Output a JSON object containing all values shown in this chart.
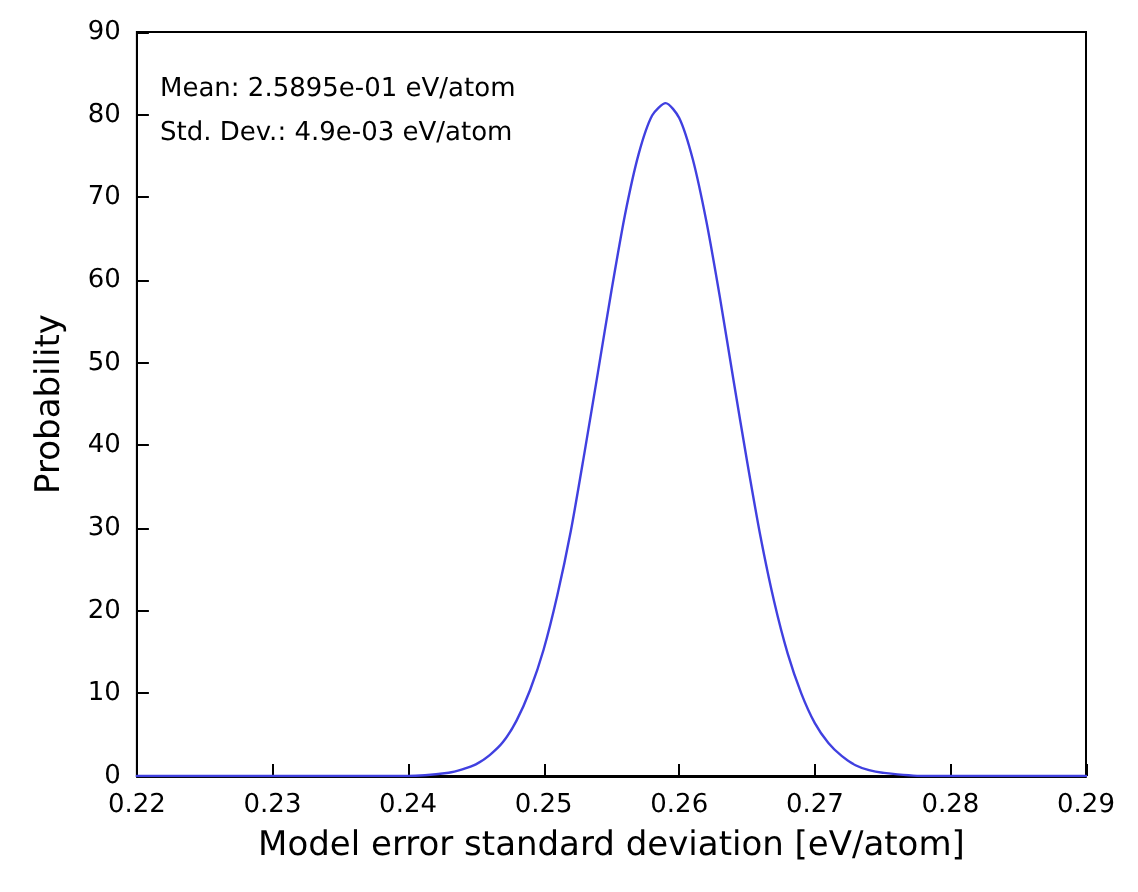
{
  "chart_data": {
    "type": "line",
    "xlabel": "Model error standard deviation [eV/atom]",
    "ylabel": "Probability",
    "annotations": [
      "Mean: 2.5895e-01 eV/atom",
      "Std. Dev.: 4.9e-03 eV/atom"
    ],
    "series": [
      {
        "color": "#4040e0",
        "x": [
          0.22,
          0.23,
          0.24,
          0.243,
          0.244,
          0.245,
          0.246,
          0.247,
          0.248,
          0.249,
          0.25,
          0.251,
          0.252,
          0.253,
          0.254,
          0.255,
          0.256,
          0.257,
          0.258,
          0.259,
          0.26,
          0.261,
          0.262,
          0.263,
          0.264,
          0.265,
          0.266,
          0.267,
          0.268,
          0.269,
          0.27,
          0.271,
          0.272,
          0.273,
          0.274,
          0.275,
          0.278,
          0.28,
          0.29
        ],
        "values": [
          0,
          0,
          0,
          0.4,
          0.8,
          1.4,
          2.5,
          4.1,
          6.7,
          10.4,
          15.3,
          21.8,
          29.6,
          39,
          48.8,
          58.7,
          67.9,
          75.2,
          79.9,
          81.4,
          79.6,
          74.6,
          67.1,
          57.9,
          47.9,
          38.1,
          28.9,
          21.1,
          14.8,
          10,
          6.4,
          4,
          2.4,
          1.3,
          0.7,
          0.4,
          0,
          0,
          0
        ]
      }
    ],
    "xlim": [
      0.22,
      0.29
    ],
    "xticks": [
      0.22,
      0.23,
      0.24,
      0.25,
      0.26,
      0.27,
      0.28,
      0.29
    ],
    "ylim": [
      0,
      90
    ],
    "yticks": [
      0,
      10,
      20,
      30,
      40,
      50,
      60,
      70,
      80,
      90
    ],
    "marker": "none",
    "line_style": "solid"
  }
}
